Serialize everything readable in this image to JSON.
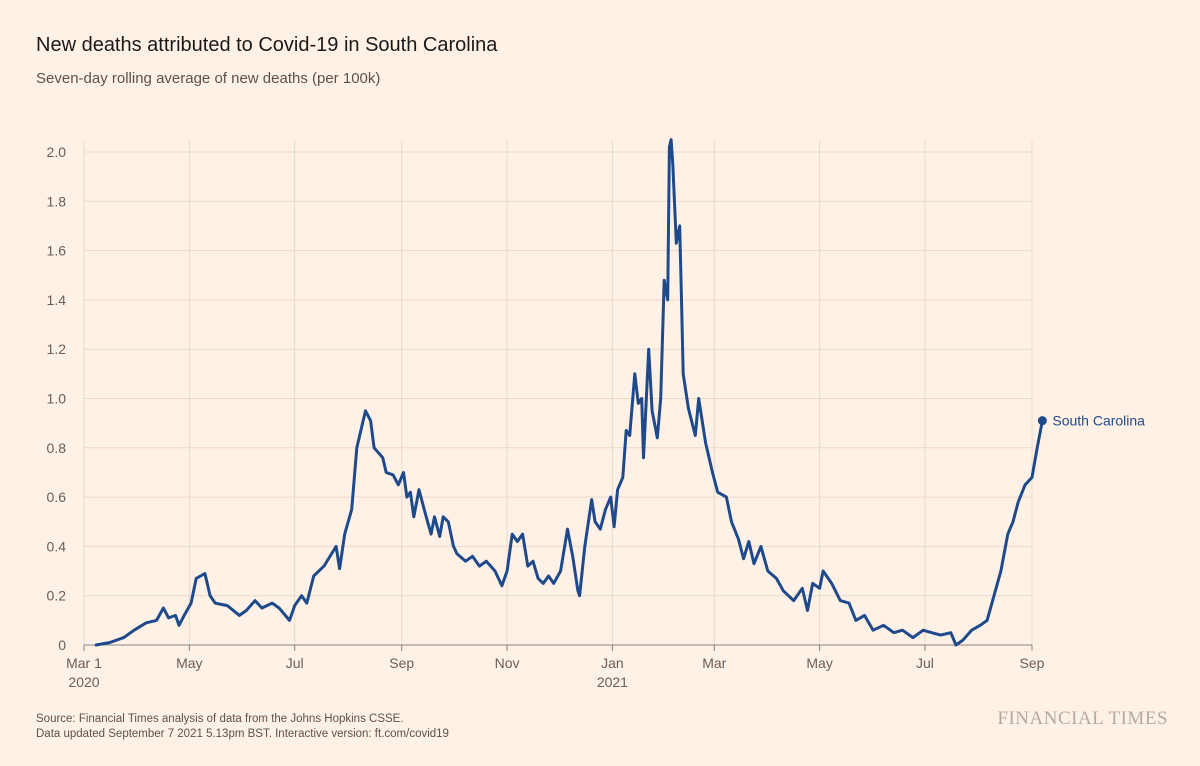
{
  "title": "New deaths attributed to Covid-19 in South Carolina",
  "subtitle": "Seven-day rolling average of new deaths (per 100k)",
  "source_line1": "Source: Financial Times analysis of data from the Johns Hopkins CSSE.",
  "source_line2": "Data updated September 7 2021 5.13pm BST. Interactive version: ft.com/covid19",
  "logo": "FINANCIAL TIMES",
  "colors": {
    "background": "#fff1e5",
    "series": "#1e4a8c",
    "grid": "#e6d9ce",
    "axis": "#8a8580"
  },
  "chart_data": {
    "type": "line",
    "title": "New deaths attributed to Covid-19 in South Carolina",
    "subtitle": "Seven-day rolling average of new deaths (per 100k)",
    "xlabel": "",
    "ylabel": "",
    "x_range": [
      "2020-03-01",
      "2021-09-07"
    ],
    "ylim": [
      0,
      2.0
    ],
    "y_ticks": [
      0,
      0.2,
      0.4,
      0.6,
      0.8,
      1.0,
      1.2,
      1.4,
      1.6,
      1.8,
      2.0
    ],
    "y_tick_labels": [
      "0",
      "0.2",
      "0.4",
      "0.6",
      "0.8",
      "1.0",
      "1.2",
      "1.4",
      "1.6",
      "1.8",
      "2.0"
    ],
    "x_ticks": [
      {
        "date": "2020-03-01",
        "label": "Mar 1",
        "sublabel": "2020"
      },
      {
        "date": "2020-05-01",
        "label": "May",
        "sublabel": ""
      },
      {
        "date": "2020-07-01",
        "label": "Jul",
        "sublabel": ""
      },
      {
        "date": "2020-09-01",
        "label": "Sep",
        "sublabel": ""
      },
      {
        "date": "2020-11-01",
        "label": "Nov",
        "sublabel": ""
      },
      {
        "date": "2021-01-01",
        "label": "Jan",
        "sublabel": "2021"
      },
      {
        "date": "2021-03-01",
        "label": "Mar",
        "sublabel": ""
      },
      {
        "date": "2021-05-01",
        "label": "May",
        "sublabel": ""
      },
      {
        "date": "2021-07-01",
        "label": "Jul",
        "sublabel": ""
      },
      {
        "date": "2021-09-01",
        "label": "Sep",
        "sublabel": ""
      }
    ],
    "grid": true,
    "series": [
      {
        "name": "South Carolina",
        "color": "#1e4a8c",
        "points": [
          [
            "2020-03-08",
            0
          ],
          [
            "2020-03-16",
            0.01
          ],
          [
            "2020-03-24",
            0.03
          ],
          [
            "2020-03-30",
            0.06
          ],
          [
            "2020-04-06",
            0.09
          ],
          [
            "2020-04-12",
            0.1
          ],
          [
            "2020-04-16",
            0.15
          ],
          [
            "2020-04-19",
            0.11
          ],
          [
            "2020-04-23",
            0.12
          ],
          [
            "2020-04-25",
            0.08
          ],
          [
            "2020-04-28",
            0.12
          ],
          [
            "2020-05-02",
            0.17
          ],
          [
            "2020-05-05",
            0.27
          ],
          [
            "2020-05-10",
            0.29
          ],
          [
            "2020-05-13",
            0.2
          ],
          [
            "2020-05-16",
            0.17
          ],
          [
            "2020-05-23",
            0.16
          ],
          [
            "2020-05-30",
            0.12
          ],
          [
            "2020-06-03",
            0.14
          ],
          [
            "2020-06-08",
            0.18
          ],
          [
            "2020-06-12",
            0.15
          ],
          [
            "2020-06-18",
            0.17
          ],
          [
            "2020-06-22",
            0.15
          ],
          [
            "2020-06-28",
            0.1
          ],
          [
            "2020-07-01",
            0.16
          ],
          [
            "2020-07-05",
            0.2
          ],
          [
            "2020-07-08",
            0.17
          ],
          [
            "2020-07-12",
            0.28
          ],
          [
            "2020-07-18",
            0.32
          ],
          [
            "2020-07-25",
            0.4
          ],
          [
            "2020-07-27",
            0.31
          ],
          [
            "2020-07-30",
            0.45
          ],
          [
            "2020-08-03",
            0.55
          ],
          [
            "2020-08-06",
            0.8
          ],
          [
            "2020-08-09",
            0.89
          ],
          [
            "2020-08-11",
            0.95
          ],
          [
            "2020-08-14",
            0.91
          ],
          [
            "2020-08-16",
            0.8
          ],
          [
            "2020-08-21",
            0.76
          ],
          [
            "2020-08-23",
            0.7
          ],
          [
            "2020-08-27",
            0.69
          ],
          [
            "2020-08-30",
            0.65
          ],
          [
            "2020-09-02",
            0.7
          ],
          [
            "2020-09-04",
            0.6
          ],
          [
            "2020-09-06",
            0.62
          ],
          [
            "2020-09-08",
            0.52
          ],
          [
            "2020-09-11",
            0.63
          ],
          [
            "2020-09-14",
            0.55
          ],
          [
            "2020-09-16",
            0.5
          ],
          [
            "2020-09-18",
            0.45
          ],
          [
            "2020-09-20",
            0.52
          ],
          [
            "2020-09-23",
            0.44
          ],
          [
            "2020-09-25",
            0.52
          ],
          [
            "2020-09-28",
            0.5
          ],
          [
            "2020-10-01",
            0.4
          ],
          [
            "2020-10-03",
            0.37
          ],
          [
            "2020-10-08",
            0.34
          ],
          [
            "2020-10-12",
            0.36
          ],
          [
            "2020-10-16",
            0.32
          ],
          [
            "2020-10-20",
            0.34
          ],
          [
            "2020-10-25",
            0.3
          ],
          [
            "2020-10-29",
            0.24
          ],
          [
            "2020-11-01",
            0.3
          ],
          [
            "2020-11-04",
            0.45
          ],
          [
            "2020-11-07",
            0.42
          ],
          [
            "2020-11-10",
            0.45
          ],
          [
            "2020-11-13",
            0.32
          ],
          [
            "2020-11-16",
            0.34
          ],
          [
            "2020-11-19",
            0.27
          ],
          [
            "2020-11-22",
            0.25
          ],
          [
            "2020-11-25",
            0.28
          ],
          [
            "2020-11-28",
            0.25
          ],
          [
            "2020-12-02",
            0.3
          ],
          [
            "2020-12-06",
            0.47
          ],
          [
            "2020-12-09",
            0.36
          ],
          [
            "2020-12-12",
            0.22
          ],
          [
            "2020-12-13",
            0.2
          ],
          [
            "2020-12-16",
            0.4
          ],
          [
            "2020-12-20",
            0.59
          ],
          [
            "2020-12-22",
            0.5
          ],
          [
            "2020-12-25",
            0.47
          ],
          [
            "2020-12-28",
            0.55
          ],
          [
            "2020-12-31",
            0.6
          ],
          [
            "2021-01-02",
            0.48
          ],
          [
            "2021-01-04",
            0.63
          ],
          [
            "2021-01-07",
            0.68
          ],
          [
            "2021-01-09",
            0.87
          ],
          [
            "2021-01-11",
            0.85
          ],
          [
            "2021-01-14",
            1.1
          ],
          [
            "2021-01-16",
            0.98
          ],
          [
            "2021-01-18",
            1.0
          ],
          [
            "2021-01-19",
            0.76
          ],
          [
            "2021-01-22",
            1.2
          ],
          [
            "2021-01-24",
            0.95
          ],
          [
            "2021-01-27",
            0.84
          ],
          [
            "2021-01-29",
            1.0
          ],
          [
            "2021-01-31",
            1.48
          ],
          [
            "2021-02-02",
            1.4
          ],
          [
            "2021-02-03",
            2.02
          ],
          [
            "2021-02-04",
            2.05
          ],
          [
            "2021-02-05",
            1.95
          ],
          [
            "2021-02-07",
            1.63
          ],
          [
            "2021-02-09",
            1.7
          ],
          [
            "2021-02-10",
            1.4
          ],
          [
            "2021-02-11",
            1.1
          ],
          [
            "2021-02-14",
            0.96
          ],
          [
            "2021-02-18",
            0.85
          ],
          [
            "2021-02-20",
            1.0
          ],
          [
            "2021-02-24",
            0.82
          ],
          [
            "2021-02-28",
            0.7
          ],
          [
            "2021-03-03",
            0.62
          ],
          [
            "2021-03-08",
            0.6
          ],
          [
            "2021-03-11",
            0.5
          ],
          [
            "2021-03-15",
            0.43
          ],
          [
            "2021-03-18",
            0.35
          ],
          [
            "2021-03-21",
            0.42
          ],
          [
            "2021-03-24",
            0.33
          ],
          [
            "2021-03-28",
            0.4
          ],
          [
            "2021-04-01",
            0.3
          ],
          [
            "2021-04-06",
            0.27
          ],
          [
            "2021-04-10",
            0.22
          ],
          [
            "2021-04-16",
            0.18
          ],
          [
            "2021-04-21",
            0.23
          ],
          [
            "2021-04-24",
            0.14
          ],
          [
            "2021-04-27",
            0.25
          ],
          [
            "2021-05-01",
            0.23
          ],
          [
            "2021-05-03",
            0.3
          ],
          [
            "2021-05-08",
            0.25
          ],
          [
            "2021-05-13",
            0.18
          ],
          [
            "2021-05-18",
            0.17
          ],
          [
            "2021-05-22",
            0.1
          ],
          [
            "2021-05-27",
            0.12
          ],
          [
            "2021-06-01",
            0.06
          ],
          [
            "2021-06-07",
            0.08
          ],
          [
            "2021-06-13",
            0.05
          ],
          [
            "2021-06-18",
            0.06
          ],
          [
            "2021-06-24",
            0.03
          ],
          [
            "2021-06-30",
            0.06
          ],
          [
            "2021-07-05",
            0.05
          ],
          [
            "2021-07-10",
            0.04
          ],
          [
            "2021-07-16",
            0.05
          ],
          [
            "2021-07-19",
            0
          ],
          [
            "2021-07-23",
            0.02
          ],
          [
            "2021-07-28",
            0.06
          ],
          [
            "2021-08-02",
            0.08
          ],
          [
            "2021-08-06",
            0.1
          ],
          [
            "2021-08-10",
            0.2
          ],
          [
            "2021-08-14",
            0.3
          ],
          [
            "2021-08-18",
            0.45
          ],
          [
            "2021-08-21",
            0.5
          ],
          [
            "2021-08-24",
            0.58
          ],
          [
            "2021-08-28",
            0.65
          ],
          [
            "2021-09-01",
            0.68
          ],
          [
            "2021-09-04",
            0.8
          ],
          [
            "2021-09-07",
            0.91
          ]
        ]
      }
    ]
  }
}
